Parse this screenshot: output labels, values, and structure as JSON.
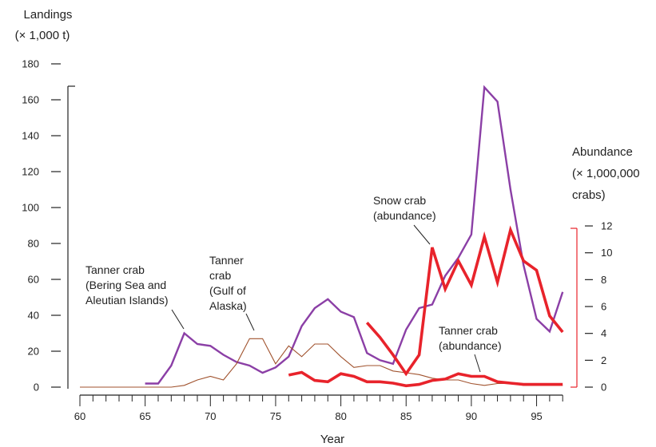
{
  "chart_data": {
    "type": "line",
    "xlabel": "Year",
    "ylabel_left": [
      "Landings",
      "(× 1,000 t)"
    ],
    "ylabel_right": [
      "Abundance",
      "(× 1,000,000",
      "crabs)"
    ],
    "x_ticks": [
      60,
      65,
      70,
      75,
      80,
      85,
      90,
      95
    ],
    "xlim": [
      60,
      97
    ],
    "ylim_left": [
      0,
      180
    ],
    "y_ticks_left": [
      0,
      20,
      40,
      60,
      80,
      100,
      120,
      140,
      160,
      180
    ],
    "ylim_right": [
      0,
      12
    ],
    "y_ticks_right": [
      0,
      2,
      4,
      6,
      8,
      10,
      12
    ],
    "series": [
      {
        "axis": "left",
        "color": "#8b3fa6",
        "x": [
          65,
          66,
          67,
          68,
          69,
          70,
          71,
          72,
          73,
          74,
          75,
          76,
          77,
          78,
          79,
          80,
          81,
          82,
          83,
          84,
          85,
          86,
          87,
          88,
          89,
          90,
          91,
          92,
          93,
          94,
          95,
          96,
          97
        ],
        "values": [
          2,
          2,
          12,
          30,
          24,
          23,
          18,
          14,
          12,
          8,
          11,
          17,
          34,
          44,
          49,
          42,
          39,
          19,
          15,
          13,
          32,
          44,
          46,
          62,
          72,
          85,
          167,
          159,
          110,
          68,
          38,
          31,
          53
        ]
      },
      {
        "axis": "left",
        "color": "#a0522d",
        "x": [
          60,
          61,
          62,
          63,
          64,
          65,
          66,
          67,
          68,
          69,
          70,
          71,
          72,
          73,
          74,
          75,
          76,
          77,
          78,
          79,
          80,
          81,
          82,
          83,
          84,
          85,
          86,
          87,
          88,
          89,
          90,
          91,
          92,
          93,
          94,
          95,
          96,
          97
        ],
        "values": [
          0,
          0,
          0,
          0,
          0,
          0,
          0,
          0,
          1,
          4,
          6,
          4,
          13,
          27,
          27,
          13,
          23,
          17,
          24,
          24,
          17,
          11,
          12,
          12,
          9,
          8,
          7,
          5,
          4,
          4,
          2,
          1,
          2,
          2,
          1,
          1,
          1,
          1
        ]
      },
      {
        "axis": "right",
        "color": "#e8232b",
        "x": [
          82,
          83,
          84,
          85,
          86,
          87,
          88,
          89,
          90,
          91,
          92,
          93,
          94,
          95,
          96,
          97
        ],
        "values": [
          4.8,
          3.7,
          2.4,
          1.0,
          2.4,
          10.4,
          7.3,
          9.4,
          7.6,
          11.2,
          7.8,
          11.7,
          9.4,
          8.7,
          5.3,
          4.1
        ]
      },
      {
        "axis": "right",
        "color": "#e8232b",
        "x": [
          76,
          77,
          78,
          79,
          80,
          81,
          82,
          83,
          84,
          85,
          86,
          87,
          88,
          89,
          90,
          91,
          92,
          93,
          94,
          95,
          96,
          97
        ],
        "values": [
          0.9,
          1.1,
          0.5,
          0.4,
          1.0,
          0.8,
          0.4,
          0.4,
          0.3,
          0.1,
          0.2,
          0.5,
          0.6,
          1.0,
          0.8,
          0.8,
          0.4,
          0.3,
          0.2,
          0.2,
          0.2,
          0.2
        ]
      }
    ],
    "annotations": [
      {
        "lines": [
          "Tanner crab",
          "(Bering Sea and",
          "Aleutian Islands)"
        ]
      },
      {
        "lines": [
          "Tanner",
          "crab",
          "(Gulf of",
          "Alaska)"
        ]
      },
      {
        "lines": [
          "Snow crab",
          "(abundance)"
        ]
      },
      {
        "lines": [
          "Tanner crab",
          "(abundance)"
        ]
      }
    ]
  }
}
